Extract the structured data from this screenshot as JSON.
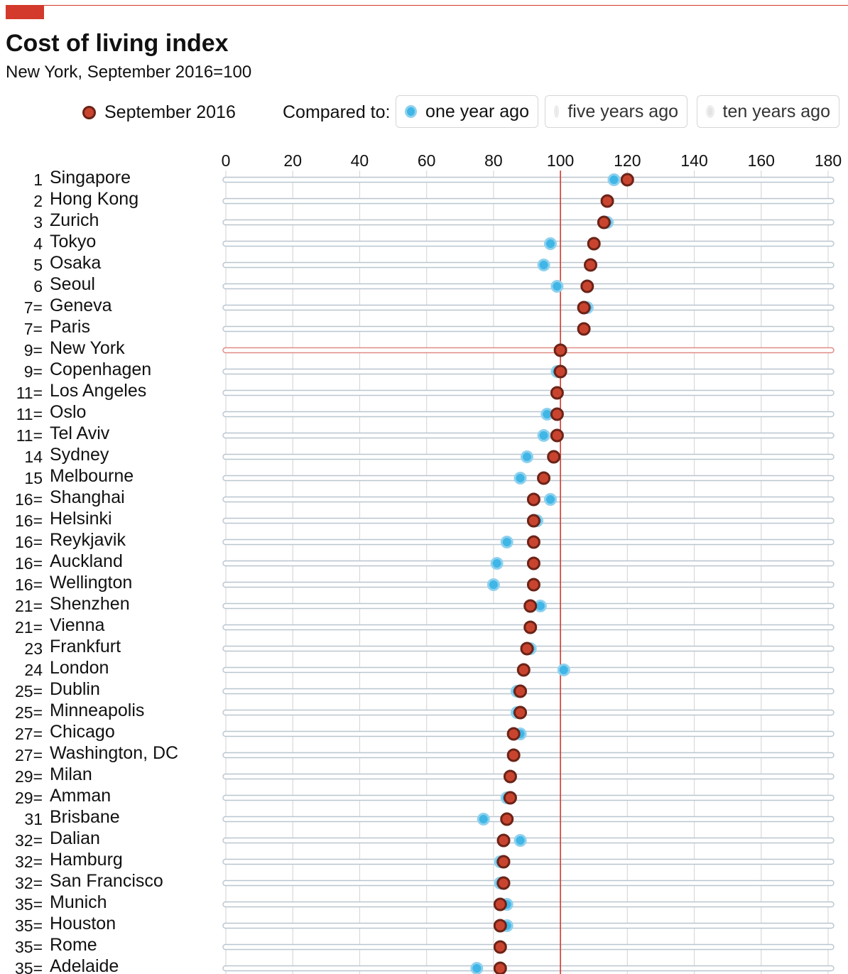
{
  "header": {
    "title": "Cost of living index",
    "subtitle": "New York, September 2016=100"
  },
  "legend": {
    "current_label": "September 2016",
    "compared_label": "Compared to:",
    "options": [
      {
        "label": "one year ago",
        "active": true
      },
      {
        "label": "five years ago",
        "active": false
      },
      {
        "label": "ten years ago",
        "active": false
      }
    ]
  },
  "colors": {
    "accent_red": "#d33a2c",
    "current_fill": "#c9442f",
    "current_stroke": "#6b2317",
    "compare_fill": "#3fb6e6",
    "compare_stroke": "#8ed1ee",
    "inactive_grey": "#e3e3e3"
  },
  "chart_data": {
    "type": "scatter",
    "title": "Cost of living index",
    "subtitle": "New York, September 2016=100",
    "x_ticks": [
      0,
      20,
      40,
      60,
      80,
      100,
      120,
      140,
      160,
      180
    ],
    "xlim": [
      0,
      180
    ],
    "reference_value": 100,
    "reference_city": "New York",
    "series": [
      {
        "name": "September 2016",
        "key": "current"
      },
      {
        "name": "one year ago",
        "key": "year_ago"
      }
    ],
    "rows": [
      {
        "rank": "1",
        "city": "Singapore",
        "current": 120,
        "year_ago": 116
      },
      {
        "rank": "2",
        "city": "Hong Kong",
        "current": 114,
        "year_ago": 114
      },
      {
        "rank": "3",
        "city": "Zurich",
        "current": 113,
        "year_ago": 114
      },
      {
        "rank": "4",
        "city": "Tokyo",
        "current": 110,
        "year_ago": 97
      },
      {
        "rank": "5",
        "city": "Osaka",
        "current": 109,
        "year_ago": 95
      },
      {
        "rank": "6",
        "city": "Seoul",
        "current": 108,
        "year_ago": 99
      },
      {
        "rank": "7=",
        "city": "Geneva",
        "current": 107,
        "year_ago": 108
      },
      {
        "rank": "7=",
        "city": "Paris",
        "current": 107,
        "year_ago": 107
      },
      {
        "rank": "9=",
        "city": "New York",
        "current": 100,
        "year_ago": 100
      },
      {
        "rank": "9=",
        "city": "Copenhagen",
        "current": 100,
        "year_ago": 99
      },
      {
        "rank": "11=",
        "city": "Los Angeles",
        "current": 99,
        "year_ago": 99
      },
      {
        "rank": "11=",
        "city": "Oslo",
        "current": 99,
        "year_ago": 96
      },
      {
        "rank": "11=",
        "city": "Tel Aviv",
        "current": 99,
        "year_ago": 95
      },
      {
        "rank": "14",
        "city": "Sydney",
        "current": 98,
        "year_ago": 90
      },
      {
        "rank": "15",
        "city": "Melbourne",
        "current": 95,
        "year_ago": 88
      },
      {
        "rank": "16=",
        "city": "Shanghai",
        "current": 92,
        "year_ago": 97
      },
      {
        "rank": "16=",
        "city": "Helsinki",
        "current": 92,
        "year_ago": 93
      },
      {
        "rank": "16=",
        "city": "Reykjavik",
        "current": 92,
        "year_ago": 84
      },
      {
        "rank": "16=",
        "city": "Auckland",
        "current": 92,
        "year_ago": 81
      },
      {
        "rank": "16=",
        "city": "Wellington",
        "current": 92,
        "year_ago": 80
      },
      {
        "rank": "21=",
        "city": "Shenzhen",
        "current": 91,
        "year_ago": 94
      },
      {
        "rank": "21=",
        "city": "Vienna",
        "current": 91,
        "year_ago": 91
      },
      {
        "rank": "23",
        "city": "Frankfurt",
        "current": 90,
        "year_ago": 91
      },
      {
        "rank": "24",
        "city": "London",
        "current": 89,
        "year_ago": 101
      },
      {
        "rank": "25=",
        "city": "Dublin",
        "current": 88,
        "year_ago": 87
      },
      {
        "rank": "25=",
        "city": "Minneapolis",
        "current": 88,
        "year_ago": 87
      },
      {
        "rank": "27=",
        "city": "Chicago",
        "current": 86,
        "year_ago": 88
      },
      {
        "rank": "27=",
        "city": "Washington, DC",
        "current": 86,
        "year_ago": 86
      },
      {
        "rank": "29=",
        "city": "Milan",
        "current": 85,
        "year_ago": 85
      },
      {
        "rank": "29=",
        "city": "Amman",
        "current": 85,
        "year_ago": 84
      },
      {
        "rank": "31",
        "city": "Brisbane",
        "current": 84,
        "year_ago": 77
      },
      {
        "rank": "32=",
        "city": "Dalian",
        "current": 83,
        "year_ago": 88
      },
      {
        "rank": "32=",
        "city": "Hamburg",
        "current": 83,
        "year_ago": 82
      },
      {
        "rank": "32=",
        "city": "San Francisco",
        "current": 83,
        "year_ago": 82
      },
      {
        "rank": "35=",
        "city": "Munich",
        "current": 82,
        "year_ago": 84
      },
      {
        "rank": "35=",
        "city": "Houston",
        "current": 82,
        "year_ago": 84
      },
      {
        "rank": "35=",
        "city": "Rome",
        "current": 82,
        "year_ago": 82
      },
      {
        "rank": "35=",
        "city": "Adelaide",
        "current": 82,
        "year_ago": 75
      }
    ]
  }
}
